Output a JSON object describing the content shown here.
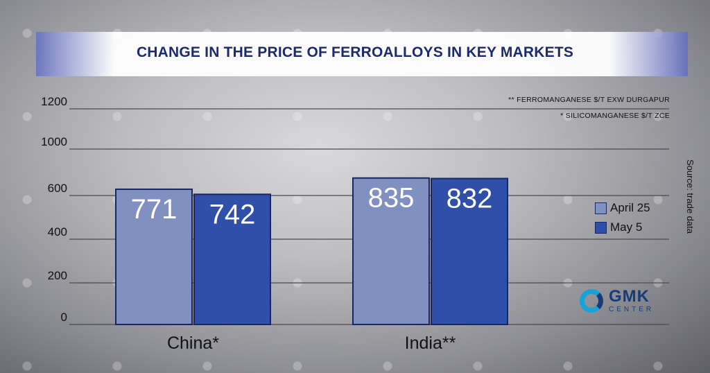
{
  "title": "CHANGE IN THE PRICE OF FERROALLOYS IN KEY MARKETS",
  "notes": {
    "ferromanganese": "** FERROMANGANESE $/T EXW DURGAPUR",
    "silicomanganese": "* SILICOMANGANESE $/T ZCE"
  },
  "source": "Source: trade data",
  "logo": {
    "main": "GMK",
    "sub": "CENTER"
  },
  "colors": {
    "april": "#8090c0",
    "may": "#2f4fa8",
    "border": "#1b2560"
  },
  "chart_data": {
    "type": "bar",
    "title": "CHANGE IN THE PRICE OF FERROALLOYS IN KEY MARKETS",
    "xlabel": "",
    "ylabel": "",
    "categories": [
      "China*",
      "India**"
    ],
    "series": [
      {
        "name": "April 25",
        "values": [
          771,
          742
        ]
      },
      {
        "name": "May 5",
        "values": [
          835,
          832
        ]
      }
    ],
    "y_tick_labels": [
      "0",
      "200",
      "400",
      "600",
      "1000",
      "1200"
    ],
    "grid": true,
    "legend_position": "right"
  }
}
